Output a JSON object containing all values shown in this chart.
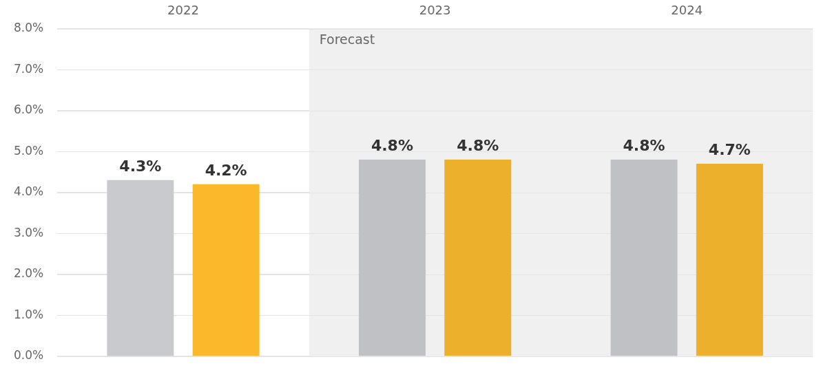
{
  "chart_data": {
    "type": "bar",
    "categories": [
      "2022",
      "2023",
      "2024"
    ],
    "series": [
      {
        "colors": [
          "#c8cacd",
          "#bfc1c4",
          "#bfc1c4"
        ],
        "values": [
          4.3,
          4.8,
          4.8
        ],
        "value_labels": [
          "4.3%",
          "4.8%",
          "4.8%"
        ]
      },
      {
        "colors": [
          "#fbb82b",
          "#edb02d",
          "#edb02d"
        ],
        "values": [
          4.2,
          4.8,
          4.7
        ],
        "value_labels": [
          "4.2%",
          "4.8%",
          "4.7%"
        ]
      }
    ],
    "ylim": [
      0,
      8
    ],
    "yticks": [
      {
        "value": 0,
        "label": "0.0%"
      },
      {
        "value": 1,
        "label": "1.0%"
      },
      {
        "value": 2,
        "label": "2.0%"
      },
      {
        "value": 3,
        "label": "3.0%"
      },
      {
        "value": 4,
        "label": "4.0%"
      },
      {
        "value": 5,
        "label": "5.0%"
      },
      {
        "value": 6,
        "label": "6.0%"
      },
      {
        "value": 7,
        "label": "7.0%"
      },
      {
        "value": 8,
        "label": "8.0%"
      }
    ],
    "grid": "y",
    "legend": false,
    "bands": [
      {
        "axis": "x",
        "from": "2023",
        "to": "2024",
        "label": "Forecast",
        "color": "#f0f0f0"
      }
    ]
  }
}
